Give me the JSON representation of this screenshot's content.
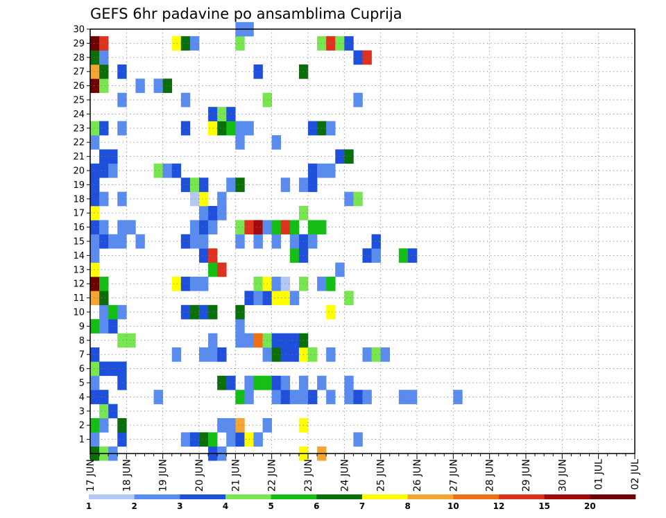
{
  "chart_data": {
    "type": "heatmap",
    "title": "GEFS 6hr padavine po ansamblima Cuprija",
    "xlabel": "",
    "ylabel": "",
    "x_range": [
      "17 JUN",
      "02 JUL"
    ],
    "x_step": "6h",
    "x_ticks": [
      "17 JUN",
      "18 JUN",
      "19 JUN",
      "20 JUN",
      "21 JUN",
      "22 JUN",
      "23 JUN",
      "24 JUN",
      "25 JUN",
      "26 JUN",
      "27 JUN",
      "28 JUN",
      "29 JUN",
      "30 JUN",
      "01 JUL",
      "02 JUL"
    ],
    "y_ticks": [
      "1",
      "2",
      "3",
      "4",
      "5",
      "6",
      "7",
      "8",
      "9",
      "10",
      "11",
      "12",
      "13",
      "14",
      "15",
      "16",
      "17",
      "18",
      "19",
      "20",
      "21",
      "22",
      "23",
      "24",
      "25",
      "26",
      "27",
      "28",
      "29",
      "30"
    ],
    "ylim": [
      0,
      30
    ],
    "grid": true,
    "legend_position": "bottom",
    "legend": {
      "labels": [
        "1",
        "2",
        "3",
        "4",
        "5",
        "6",
        "7",
        "8",
        "10",
        "12",
        "15",
        "20"
      ],
      "colors": [
        "#b4c8f4",
        "#5a8cf0",
        "#1e50dc",
        "#78e650",
        "#14be14",
        "#0a6e0a",
        "#ffff00",
        "#f5a532",
        "#f06e14",
        "#dc321e",
        "#a00a0a",
        "#6e0000"
      ]
    },
    "member_rows": [
      {
        "member": 0,
        "values": [
          [
            0,
            5
          ],
          [
            1,
            3
          ],
          [
            2,
            1
          ],
          [
            13,
            2
          ],
          [
            14,
            1
          ],
          [
            23,
            6
          ],
          [
            25,
            7
          ]
        ]
      },
      {
        "member": 1,
        "values": [
          [
            0,
            1
          ],
          [
            3,
            2
          ],
          [
            10,
            1
          ],
          [
            11,
            2
          ],
          [
            12,
            5
          ],
          [
            13,
            4
          ],
          [
            15,
            1
          ],
          [
            16,
            2
          ],
          [
            17,
            6
          ],
          [
            18,
            1
          ],
          [
            29,
            1
          ]
        ]
      },
      {
        "member": 2,
        "values": [
          [
            0,
            4
          ],
          [
            1,
            1
          ],
          [
            3,
            5
          ],
          [
            14,
            1
          ],
          [
            15,
            1
          ],
          [
            16,
            7
          ],
          [
            19,
            1
          ],
          [
            23,
            6
          ]
        ]
      },
      {
        "member": 3,
        "values": [
          [
            1,
            3
          ],
          [
            2,
            2
          ]
        ]
      },
      {
        "member": 4,
        "values": [
          [
            0,
            2
          ],
          [
            1,
            2
          ],
          [
            7,
            1
          ],
          [
            16,
            4
          ],
          [
            17,
            1
          ],
          [
            20,
            1
          ],
          [
            21,
            2
          ],
          [
            22,
            1
          ],
          [
            23,
            1
          ],
          [
            24,
            2
          ],
          [
            26,
            1
          ],
          [
            28,
            1
          ],
          [
            29,
            2
          ],
          [
            30,
            1
          ],
          [
            34,
            1
          ],
          [
            35,
            1
          ],
          [
            40,
            1
          ]
        ]
      },
      {
        "member": 5,
        "values": [
          [
            0,
            1
          ],
          [
            3,
            2
          ],
          [
            14,
            5
          ],
          [
            15,
            2
          ],
          [
            17,
            1
          ],
          [
            18,
            4
          ],
          [
            19,
            4
          ],
          [
            20,
            2
          ],
          [
            21,
            1
          ],
          [
            23,
            1
          ],
          [
            25,
            1
          ],
          [
            28,
            1
          ]
        ]
      },
      {
        "member": 6,
        "values": [
          [
            0,
            3
          ],
          [
            1,
            2
          ],
          [
            2,
            2
          ],
          [
            3,
            2
          ]
        ]
      },
      {
        "member": 7,
        "values": [
          [
            0,
            2
          ],
          [
            9,
            1
          ],
          [
            12,
            1
          ],
          [
            13,
            1
          ],
          [
            14,
            2
          ],
          [
            19,
            1
          ],
          [
            20,
            5
          ],
          [
            21,
            2
          ],
          [
            22,
            2
          ],
          [
            23,
            6
          ],
          [
            24,
            3
          ],
          [
            26,
            1
          ],
          [
            30,
            1
          ],
          [
            31,
            3
          ],
          [
            32,
            1
          ]
        ]
      },
      {
        "member": 8,
        "values": [
          [
            3,
            3
          ],
          [
            4,
            3
          ],
          [
            13,
            1
          ],
          [
            16,
            1
          ],
          [
            17,
            1
          ],
          [
            18,
            8
          ],
          [
            19,
            3
          ],
          [
            20,
            2
          ],
          [
            21,
            2
          ],
          [
            22,
            2
          ],
          [
            23,
            5
          ]
        ]
      },
      {
        "member": 9,
        "values": [
          [
            0,
            4
          ],
          [
            1,
            1
          ],
          [
            2,
            2
          ],
          [
            16,
            1
          ]
        ]
      },
      {
        "member": 10,
        "values": [
          [
            1,
            1
          ],
          [
            2,
            4
          ],
          [
            3,
            1
          ],
          [
            10,
            2
          ],
          [
            11,
            5
          ],
          [
            12,
            2
          ],
          [
            13,
            5
          ],
          [
            16,
            5
          ],
          [
            26,
            6
          ]
        ]
      },
      {
        "member": 11,
        "values": [
          [
            0,
            7
          ],
          [
            1,
            5
          ],
          [
            17,
            2
          ],
          [
            18,
            1
          ],
          [
            19,
            2
          ],
          [
            20,
            6
          ],
          [
            21,
            6
          ],
          [
            22,
            1
          ],
          [
            28,
            3
          ]
        ]
      },
      {
        "member": 12,
        "values": [
          [
            0,
            11
          ],
          [
            1,
            4
          ],
          [
            9,
            6
          ],
          [
            10,
            2
          ],
          [
            11,
            1
          ],
          [
            12,
            1
          ],
          [
            18,
            3
          ],
          [
            19,
            6
          ],
          [
            20,
            1
          ],
          [
            21,
            12
          ],
          [
            23,
            3
          ],
          [
            25,
            1
          ],
          [
            26,
            4
          ]
        ]
      },
      {
        "member": 13,
        "values": [
          [
            0,
            6
          ],
          [
            13,
            4
          ],
          [
            14,
            9
          ],
          [
            27,
            1
          ]
        ]
      },
      {
        "member": 14,
        "values": [
          [
            0,
            1
          ],
          [
            12,
            2
          ],
          [
            13,
            9
          ],
          [
            22,
            4
          ],
          [
            23,
            2
          ],
          [
            30,
            2
          ],
          [
            31,
            1
          ],
          [
            34,
            4
          ],
          [
            35,
            2
          ]
        ]
      },
      {
        "member": 15,
        "values": [
          [
            0,
            1
          ],
          [
            1,
            2
          ],
          [
            2,
            1
          ],
          [
            3,
            1
          ],
          [
            5,
            1
          ],
          [
            10,
            2
          ],
          [
            11,
            1
          ],
          [
            12,
            1
          ],
          [
            16,
            1
          ],
          [
            18,
            1
          ],
          [
            20,
            1
          ],
          [
            22,
            1
          ],
          [
            23,
            2
          ],
          [
            24,
            1
          ],
          [
            31,
            2
          ]
        ]
      },
      {
        "member": 16,
        "values": [
          [
            0,
            2
          ],
          [
            1,
            1
          ],
          [
            3,
            1
          ],
          [
            4,
            1
          ],
          [
            11,
            1
          ],
          [
            12,
            2
          ],
          [
            13,
            1
          ],
          [
            16,
            3
          ],
          [
            17,
            9
          ],
          [
            18,
            10
          ],
          [
            19,
            1
          ],
          [
            20,
            4
          ],
          [
            21,
            9
          ],
          [
            22,
            4
          ],
          [
            24,
            4
          ],
          [
            25,
            4
          ]
        ]
      },
      {
        "member": 17,
        "values": [
          [
            0,
            6
          ],
          [
            12,
            1
          ],
          [
            13,
            2
          ],
          [
            14,
            1
          ],
          [
            23,
            3
          ]
        ]
      },
      {
        "member": 18,
        "values": [
          [
            0,
            2
          ],
          [
            1,
            1
          ],
          [
            3,
            1
          ],
          [
            11,
            13
          ],
          [
            12,
            6
          ],
          [
            14,
            1
          ],
          [
            28,
            1
          ],
          [
            29,
            3
          ]
        ]
      },
      {
        "member": 19,
        "values": [
          [
            0,
            2
          ],
          [
            10,
            2
          ],
          [
            11,
            3
          ],
          [
            12,
            2
          ],
          [
            15,
            1
          ],
          [
            16,
            5
          ],
          [
            21,
            1
          ],
          [
            23,
            1
          ],
          [
            24,
            2
          ]
        ]
      },
      {
        "member": 20,
        "values": [
          [
            0,
            2
          ],
          [
            1,
            2
          ],
          [
            2,
            1
          ],
          [
            7,
            3
          ],
          [
            8,
            1
          ],
          [
            9,
            2
          ],
          [
            24,
            2
          ],
          [
            25,
            1
          ],
          [
            26,
            1
          ]
        ]
      },
      {
        "member": 21,
        "values": [
          [
            1,
            2
          ],
          [
            2,
            2
          ],
          [
            27,
            2
          ],
          [
            28,
            5
          ]
        ]
      },
      {
        "member": 22,
        "values": [
          [
            0,
            1
          ],
          [
            16,
            1
          ],
          [
            20,
            1
          ]
        ]
      },
      {
        "member": 23,
        "values": [
          [
            0,
            3
          ],
          [
            1,
            2
          ],
          [
            3,
            1
          ],
          [
            10,
            2
          ],
          [
            13,
            6
          ],
          [
            14,
            5
          ],
          [
            15,
            4
          ],
          [
            16,
            1
          ],
          [
            17,
            1
          ],
          [
            24,
            2
          ],
          [
            25,
            5
          ],
          [
            26,
            1
          ]
        ]
      },
      {
        "member": 24,
        "values": [
          [
            13,
            2
          ],
          [
            14,
            3
          ],
          [
            15,
            2
          ]
        ]
      },
      {
        "member": 25,
        "values": [
          [
            3,
            1
          ],
          [
            10,
            1
          ],
          [
            19,
            3
          ],
          [
            29,
            1
          ]
        ]
      },
      {
        "member": 26,
        "values": [
          [
            0,
            11
          ],
          [
            1,
            3
          ],
          [
            5,
            1
          ],
          [
            7,
            1
          ],
          [
            8,
            5
          ]
        ]
      },
      {
        "member": 27,
        "values": [
          [
            0,
            7
          ],
          [
            1,
            5
          ],
          [
            3,
            2
          ],
          [
            18,
            2
          ],
          [
            23,
            5
          ]
        ]
      },
      {
        "member": 28,
        "values": [
          [
            0,
            5
          ],
          [
            1,
            1
          ],
          [
            29,
            2
          ],
          [
            30,
            9
          ]
        ]
      },
      {
        "member": 29,
        "values": [
          [
            0,
            11
          ],
          [
            1,
            9
          ],
          [
            9,
            6
          ],
          [
            10,
            5
          ],
          [
            11,
            1
          ],
          [
            16,
            3
          ],
          [
            25,
            3
          ],
          [
            26,
            9
          ],
          [
            27,
            3
          ],
          [
            28,
            2
          ]
        ]
      },
      {
        "member": 30,
        "values": [
          [
            16,
            1
          ],
          [
            17,
            1
          ]
        ]
      }
    ]
  }
}
